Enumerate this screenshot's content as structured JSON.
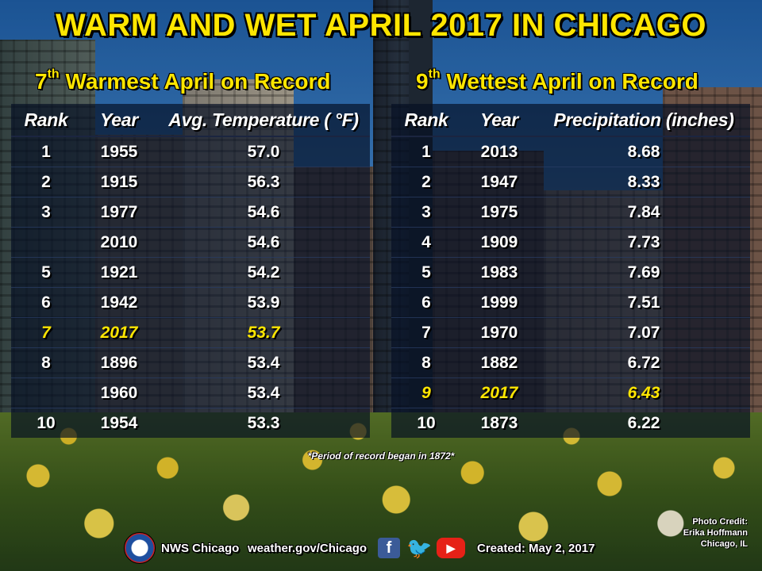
{
  "title": "WARM AND WET APRIL 2017 IN CHICAGO",
  "warm": {
    "heading_num": "7",
    "heading_sup": "th",
    "heading_rest": " Warmest April on Record",
    "columns": [
      "Rank",
      "Year",
      "Avg. Temperature ( °F)"
    ],
    "rows": [
      {
        "rank": "1",
        "year": "1955",
        "value": "57.0"
      },
      {
        "rank": "2",
        "year": "1915",
        "value": "56.3"
      },
      {
        "rank": "3",
        "year": "1977",
        "value": "54.6"
      },
      {
        "rank": "",
        "year": "2010",
        "value": "54.6"
      },
      {
        "rank": "5",
        "year": "1921",
        "value": "54.2"
      },
      {
        "rank": "6",
        "year": "1942",
        "value": "53.9"
      },
      {
        "rank": "7",
        "year": "2017",
        "value": "53.7"
      },
      {
        "rank": "8",
        "year": "1896",
        "value": "53.4"
      },
      {
        "rank": "",
        "year": "1960",
        "value": "53.4"
      },
      {
        "rank": "10",
        "year": "1954",
        "value": "53.3"
      }
    ]
  },
  "wet": {
    "heading_num": "9",
    "heading_sup": "th",
    "heading_rest": " Wettest April on Record",
    "columns": [
      "Rank",
      "Year",
      "Precipitation (inches)"
    ],
    "rows": [
      {
        "rank": "1",
        "year": "2013",
        "value": "8.68"
      },
      {
        "rank": "2",
        "year": "1947",
        "value": "8.33"
      },
      {
        "rank": "3",
        "year": "1975",
        "value": "7.84"
      },
      {
        "rank": "4",
        "year": "1909",
        "value": "7.73"
      },
      {
        "rank": "5",
        "year": "1983",
        "value": "7.69"
      },
      {
        "rank": "6",
        "year": "1999",
        "value": "7.51"
      },
      {
        "rank": "7",
        "year": "1970",
        "value": "7.07"
      },
      {
        "rank": "8",
        "year": "1882",
        "value": "6.72"
      },
      {
        "rank": "9",
        "year": "2017",
        "value": "6.43"
      },
      {
        "rank": "10",
        "year": "1873",
        "value": "6.22"
      }
    ]
  },
  "footnote": "*Period of record began in 1872*",
  "footer": {
    "office": "NWS Chicago",
    "website": "weather.gov/Chicago",
    "created": "Created: May 2, 2017",
    "icons": [
      "nws-logo",
      "facebook-icon",
      "twitter-icon",
      "youtube-icon"
    ]
  },
  "credit": {
    "label": "Photo Credit:",
    "name": "Erika Hoffmann",
    "location": "Chicago, IL"
  },
  "colors": {
    "title": "#ffe600",
    "highlight": "#ffe600",
    "text": "#ffffff"
  }
}
